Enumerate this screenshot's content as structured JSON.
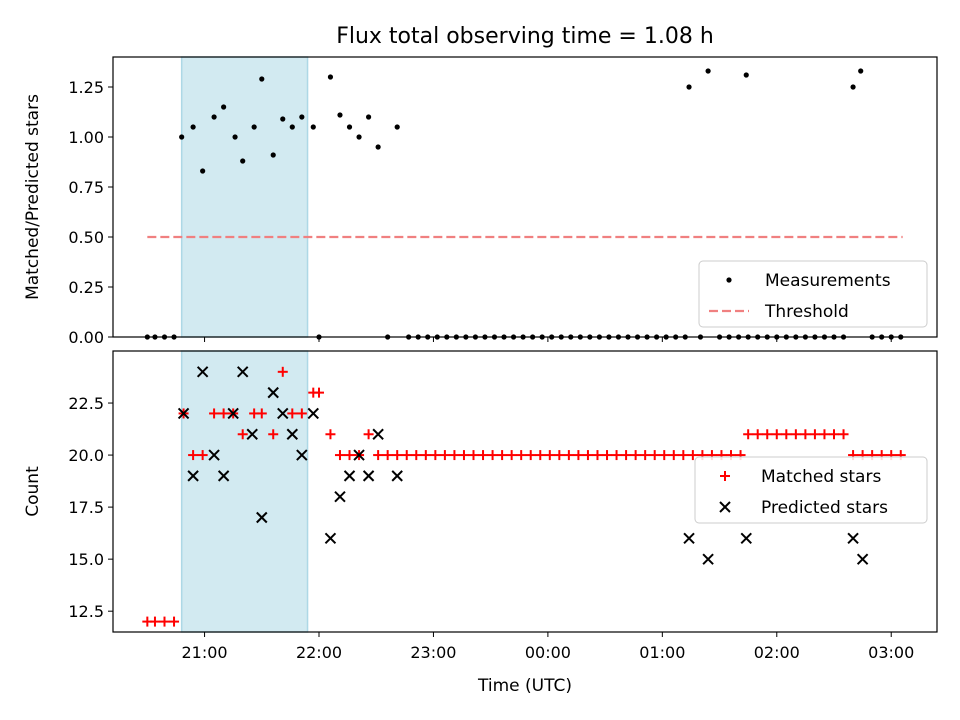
{
  "title": "Flux total observing time = 1.08 h",
  "xlabel": "Time (UTC)",
  "x_ticks": [
    "21:00",
    "22:00",
    "23:00",
    "00:00",
    "01:00",
    "02:00",
    "03:00"
  ],
  "colors": {
    "threshold": "#f08080",
    "matched": "#ff0000",
    "predicted": "#000000",
    "shade": "#add8e6",
    "measurement": "#000000"
  },
  "chart_data": [
    {
      "type": "scatter",
      "ylabel": "Matched/Predicted stars",
      "xlim": [
        "20:12",
        "03:24"
      ],
      "ylim": [
        0,
        1.4
      ],
      "y_ticks": [
        "0.00",
        "0.25",
        "0.50",
        "0.75",
        "1.00",
        "1.25"
      ],
      "shaded_span": [
        "20:48",
        "21:54"
      ],
      "legend": [
        "Measurements",
        "Threshold"
      ],
      "legend_loc": "lower right",
      "threshold": {
        "name": "Threshold",
        "y": 0.5,
        "x": [
          "20:30",
          "03:06"
        ]
      },
      "series": [
        {
          "name": "Measurements",
          "points": [
            [
              "20:30",
              0
            ],
            [
              "20:34",
              0
            ],
            [
              "20:39",
              0
            ],
            [
              "20:44",
              0
            ],
            [
              "20:48",
              1.0
            ],
            [
              "20:54",
              1.05
            ],
            [
              "20:59",
              0.83
            ],
            [
              "21:05",
              1.1
            ],
            [
              "21:10",
              1.15
            ],
            [
              "21:16",
              1.0
            ],
            [
              "21:20",
              0.88
            ],
            [
              "21:26",
              1.05
            ],
            [
              "21:30",
              1.29
            ],
            [
              "21:36",
              0.91
            ],
            [
              "21:41",
              1.09
            ],
            [
              "21:46",
              1.05
            ],
            [
              "21:51",
              1.1
            ],
            [
              "21:57",
              1.05
            ],
            [
              "22:00",
              0
            ],
            [
              "22:06",
              1.3
            ],
            [
              "22:11",
              1.11
            ],
            [
              "22:16",
              1.05
            ],
            [
              "22:21",
              1.0
            ],
            [
              "22:26",
              1.1
            ],
            [
              "22:31",
              0.95
            ],
            [
              "22:36",
              0
            ],
            [
              "22:41",
              1.05
            ],
            [
              "22:47",
              0
            ],
            [
              "22:52",
              0
            ],
            [
              "22:57",
              0
            ],
            [
              "23:02",
              0
            ],
            [
              "23:07",
              0
            ],
            [
              "23:12",
              0
            ],
            [
              "23:17",
              0
            ],
            [
              "23:22",
              0
            ],
            [
              "23:27",
              0
            ],
            [
              "23:32",
              0
            ],
            [
              "23:37",
              0
            ],
            [
              "23:42",
              0
            ],
            [
              "23:47",
              0
            ],
            [
              "23:52",
              0
            ],
            [
              "23:57",
              0
            ],
            [
              "00:02",
              0
            ],
            [
              "00:07",
              0
            ],
            [
              "00:12",
              0
            ],
            [
              "00:17",
              0
            ],
            [
              "00:22",
              0
            ],
            [
              "00:27",
              0
            ],
            [
              "00:32",
              0
            ],
            [
              "00:37",
              0
            ],
            [
              "00:42",
              0
            ],
            [
              "00:47",
              0
            ],
            [
              "00:52",
              0
            ],
            [
              "00:57",
              0
            ],
            [
              "01:02",
              0
            ],
            [
              "01:07",
              0
            ],
            [
              "01:12",
              0
            ],
            [
              "01:14",
              1.25
            ],
            [
              "01:20",
              0
            ],
            [
              "01:24",
              1.33
            ],
            [
              "01:30",
              0
            ],
            [
              "01:35",
              0
            ],
            [
              "01:40",
              0
            ],
            [
              "01:45",
              0
            ],
            [
              "01:50",
              0
            ],
            [
              "01:44",
              1.31
            ],
            [
              "01:55",
              0
            ],
            [
              "02:00",
              0
            ],
            [
              "02:05",
              0
            ],
            [
              "02:10",
              0
            ],
            [
              "02:15",
              0
            ],
            [
              "02:20",
              0
            ],
            [
              "02:25",
              0
            ],
            [
              "02:30",
              0
            ],
            [
              "02:35",
              0
            ],
            [
              "02:40",
              1.25
            ],
            [
              "02:44",
              1.33
            ],
            [
              "02:50",
              0
            ],
            [
              "02:55",
              0
            ],
            [
              "03:00",
              0
            ],
            [
              "03:05",
              0
            ]
          ]
        }
      ]
    },
    {
      "type": "scatter",
      "ylabel": "Count",
      "xlim": [
        "20:12",
        "03:24"
      ],
      "ylim": [
        11.5,
        25
      ],
      "y_ticks": [
        "12.5",
        "15.0",
        "17.5",
        "20.0",
        "22.5"
      ],
      "shaded_span": [
        "20:48",
        "21:54"
      ],
      "legend": [
        "Matched stars",
        "Predicted stars"
      ],
      "legend_loc": "center right",
      "series": [
        {
          "name": "Matched stars",
          "marker": "+",
          "points": [
            [
              "20:30",
              12
            ],
            [
              "20:34",
              12
            ],
            [
              "20:39",
              12
            ],
            [
              "20:44",
              12
            ],
            [
              "20:49",
              22
            ],
            [
              "20:54",
              20
            ],
            [
              "20:59",
              20
            ],
            [
              "21:05",
              22
            ],
            [
              "21:10",
              22
            ],
            [
              "21:15",
              22
            ],
            [
              "21:20",
              21
            ],
            [
              "21:26",
              22
            ],
            [
              "21:30",
              22
            ],
            [
              "21:36",
              21
            ],
            [
              "21:41",
              24
            ],
            [
              "21:46",
              22
            ],
            [
              "21:51",
              22
            ],
            [
              "21:57",
              23
            ],
            [
              "22:00",
              23
            ],
            [
              "22:06",
              21
            ],
            [
              "22:11",
              20
            ],
            [
              "22:16",
              20
            ],
            [
              "22:21",
              20
            ],
            [
              "22:26",
              21
            ],
            [
              "22:31",
              20
            ],
            [
              "22:36",
              20
            ],
            [
              "22:41",
              20
            ],
            [
              "22:46",
              20
            ],
            [
              "22:51",
              20
            ],
            [
              "22:56",
              20
            ],
            [
              "23:01",
              20
            ],
            [
              "23:06",
              20
            ],
            [
              "23:11",
              20
            ],
            [
              "23:16",
              20
            ],
            [
              "23:21",
              20
            ],
            [
              "23:26",
              20
            ],
            [
              "23:31",
              20
            ],
            [
              "23:36",
              20
            ],
            [
              "23:41",
              20
            ],
            [
              "23:46",
              20
            ],
            [
              "23:51",
              20
            ],
            [
              "23:56",
              20
            ],
            [
              "00:01",
              20
            ],
            [
              "00:06",
              20
            ],
            [
              "00:11",
              20
            ],
            [
              "00:16",
              20
            ],
            [
              "00:21",
              20
            ],
            [
              "00:26",
              20
            ],
            [
              "00:31",
              20
            ],
            [
              "00:36",
              20
            ],
            [
              "00:41",
              20
            ],
            [
              "00:46",
              20
            ],
            [
              "00:51",
              20
            ],
            [
              "00:56",
              20
            ],
            [
              "01:01",
              20
            ],
            [
              "01:06",
              20
            ],
            [
              "01:11",
              20
            ],
            [
              "01:16",
              20
            ],
            [
              "01:21",
              20
            ],
            [
              "01:26",
              20
            ],
            [
              "01:31",
              20
            ],
            [
              "01:36",
              20
            ],
            [
              "01:41",
              20
            ],
            [
              "01:45",
              21
            ],
            [
              "01:50",
              21
            ],
            [
              "01:55",
              21
            ],
            [
              "02:00",
              21
            ],
            [
              "02:05",
              21
            ],
            [
              "02:10",
              21
            ],
            [
              "02:15",
              21
            ],
            [
              "02:20",
              21
            ],
            [
              "02:25",
              21
            ],
            [
              "02:30",
              21
            ],
            [
              "02:35",
              21
            ],
            [
              "02:40",
              20
            ],
            [
              "02:45",
              20
            ],
            [
              "02:50",
              20
            ],
            [
              "02:55",
              20
            ],
            [
              "03:00",
              20
            ],
            [
              "03:05",
              20
            ]
          ]
        },
        {
          "name": "Predicted stars",
          "marker": "x",
          "points": [
            [
              "20:49",
              22
            ],
            [
              "20:54",
              19
            ],
            [
              "20:59",
              24
            ],
            [
              "21:05",
              20
            ],
            [
              "21:10",
              19
            ],
            [
              "21:15",
              22
            ],
            [
              "21:20",
              24
            ],
            [
              "21:25",
              21
            ],
            [
              "21:30",
              17
            ],
            [
              "21:36",
              23
            ],
            [
              "21:41",
              22
            ],
            [
              "21:46",
              21
            ],
            [
              "21:51",
              20
            ],
            [
              "21:57",
              22
            ],
            [
              "22:06",
              16
            ],
            [
              "22:11",
              18
            ],
            [
              "22:16",
              19
            ],
            [
              "22:21",
              20
            ],
            [
              "22:26",
              19
            ],
            [
              "22:31",
              21
            ],
            [
              "22:41",
              19
            ],
            [
              "01:14",
              16
            ],
            [
              "01:24",
              15
            ],
            [
              "01:44",
              16
            ],
            [
              "02:40",
              16
            ],
            [
              "02:45",
              15
            ]
          ]
        }
      ]
    }
  ]
}
